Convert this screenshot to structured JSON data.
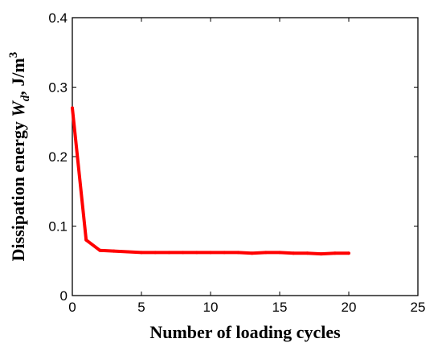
{
  "chart_data": {
    "type": "line",
    "title": "",
    "xlabel": "Number of loading cycles",
    "ylabel": {
      "prefix": "Dissipation energy ",
      "symbol": "W",
      "subscript": "d",
      "unit": ", J/m",
      "superscript": "3"
    },
    "xlim": [
      0,
      25
    ],
    "ylim": [
      0,
      0.4
    ],
    "x_ticks": [
      "0",
      "5",
      "10",
      "15",
      "20",
      "25"
    ],
    "y_ticks": [
      "0",
      "0.1",
      "0.2",
      "0.3",
      "0.4"
    ],
    "grid": false,
    "series": [
      {
        "color": "#ff0000",
        "x": [
          0,
          1,
          2,
          3,
          4,
          5,
          6,
          7,
          8,
          9,
          10,
          11,
          12,
          13,
          14,
          15,
          16,
          17,
          18,
          19,
          20
        ],
        "y": [
          0.27,
          0.08,
          0.065,
          0.064,
          0.063,
          0.062,
          0.062,
          0.062,
          0.062,
          0.062,
          0.062,
          0.062,
          0.062,
          0.061,
          0.062,
          0.062,
          0.061,
          0.061,
          0.06,
          0.061,
          0.061
        ]
      }
    ]
  }
}
